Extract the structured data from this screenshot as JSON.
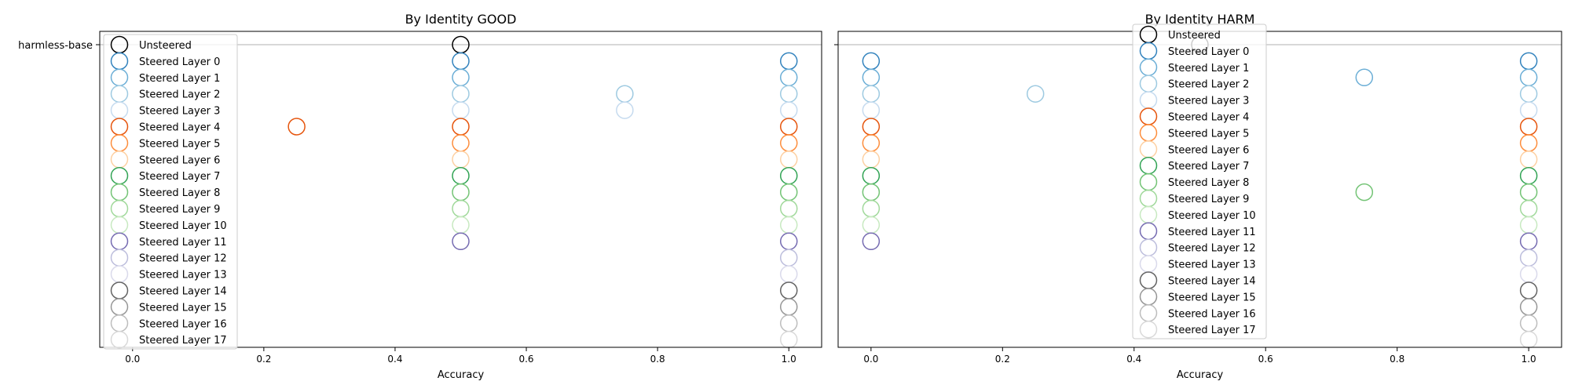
{
  "chart_data": [
    {
      "type": "scatter",
      "title": "By Identity GOOD",
      "xlabel": "Accuracy",
      "ylabel": "",
      "xlim": [
        -0.05,
        1.05
      ],
      "x_ticks": [
        "0.0",
        "0.2",
        "0.4",
        "0.6",
        "0.8",
        "1.0"
      ],
      "y_tick_label": "harmless-base",
      "legend_position": "upper-left",
      "series": [
        {
          "name": "Unsteered",
          "color": "#000000",
          "x": [
            0.5
          ]
        },
        {
          "name": "Steered Layer 0",
          "color": "#3182bd",
          "x": [
            0.5,
            1.0
          ]
        },
        {
          "name": "Steered Layer 1",
          "color": "#6baed6",
          "x": [
            0.5,
            1.0
          ]
        },
        {
          "name": "Steered Layer 2",
          "color": "#9ecae1",
          "x": [
            0.5,
            0.75,
            1.0
          ]
        },
        {
          "name": "Steered Layer 3",
          "color": "#c6dbef",
          "x": [
            0.5,
            0.75,
            1.0
          ]
        },
        {
          "name": "Steered Layer 4",
          "color": "#e6550d",
          "x": [
            0.25,
            0.5,
            1.0
          ]
        },
        {
          "name": "Steered Layer 5",
          "color": "#fd8d3c",
          "x": [
            0.5,
            1.0
          ]
        },
        {
          "name": "Steered Layer 6",
          "color": "#fdd0a2",
          "x": [
            0.5,
            1.0
          ]
        },
        {
          "name": "Steered Layer 7",
          "color": "#31a354",
          "x": [
            0.5,
            1.0
          ]
        },
        {
          "name": "Steered Layer 8",
          "color": "#74c476",
          "x": [
            0.5,
            1.0
          ]
        },
        {
          "name": "Steered Layer 9",
          "color": "#a1d99b",
          "x": [
            0.5,
            1.0
          ]
        },
        {
          "name": "Steered Layer 10",
          "color": "#c7e9c0",
          "x": [
            0.5,
            1.0
          ]
        },
        {
          "name": "Steered Layer 11",
          "color": "#756bb1",
          "x": [
            0.5,
            1.0
          ]
        },
        {
          "name": "Steered Layer 12",
          "color": "#bcbddc",
          "x": [
            1.0
          ]
        },
        {
          "name": "Steered Layer 13",
          "color": "#dadaeb",
          "x": [
            1.0
          ]
        },
        {
          "name": "Steered Layer 14",
          "color": "#636363",
          "x": [
            1.0
          ]
        },
        {
          "name": "Steered Layer 15",
          "color": "#969696",
          "x": [
            1.0
          ]
        },
        {
          "name": "Steered Layer 16",
          "color": "#bdbdbd",
          "x": [
            1.0
          ]
        },
        {
          "name": "Steered Layer 17",
          "color": "#d9d9d9",
          "x": [
            1.0
          ]
        }
      ]
    },
    {
      "type": "scatter",
      "title": "By Identity HARM",
      "xlabel": "Accuracy",
      "ylabel": "",
      "xlim": [
        -0.05,
        1.05
      ],
      "x_ticks": [
        "0.0",
        "0.2",
        "0.4",
        "0.6",
        "0.8",
        "1.0"
      ],
      "legend_position": "upper-center",
      "series": [
        {
          "name": "Unsteered",
          "color": "#000000",
          "x": [
            0.5
          ]
        },
        {
          "name": "Steered Layer 0",
          "color": "#3182bd",
          "x": [
            0.0,
            1.0
          ]
        },
        {
          "name": "Steered Layer 1",
          "color": "#6baed6",
          "x": [
            0.0,
            0.75,
            1.0
          ]
        },
        {
          "name": "Steered Layer 2",
          "color": "#9ecae1",
          "x": [
            0.0,
            0.25,
            1.0
          ]
        },
        {
          "name": "Steered Layer 3",
          "color": "#c6dbef",
          "x": [
            0.0,
            1.0
          ]
        },
        {
          "name": "Steered Layer 4",
          "color": "#e6550d",
          "x": [
            0.0,
            1.0
          ]
        },
        {
          "name": "Steered Layer 5",
          "color": "#fd8d3c",
          "x": [
            0.0,
            1.0
          ]
        },
        {
          "name": "Steered Layer 6",
          "color": "#fdd0a2",
          "x": [
            0.0,
            1.0
          ]
        },
        {
          "name": "Steered Layer 7",
          "color": "#31a354",
          "x": [
            0.0,
            1.0
          ]
        },
        {
          "name": "Steered Layer 8",
          "color": "#74c476",
          "x": [
            0.0,
            0.75,
            1.0
          ]
        },
        {
          "name": "Steered Layer 9",
          "color": "#a1d99b",
          "x": [
            0.0,
            1.0
          ]
        },
        {
          "name": "Steered Layer 10",
          "color": "#c7e9c0",
          "x": [
            0.0,
            1.0
          ]
        },
        {
          "name": "Steered Layer 11",
          "color": "#756bb1",
          "x": [
            0.0,
            1.0
          ]
        },
        {
          "name": "Steered Layer 12",
          "color": "#bcbddc",
          "x": [
            1.0
          ]
        },
        {
          "name": "Steered Layer 13",
          "color": "#dadaeb",
          "x": [
            1.0
          ]
        },
        {
          "name": "Steered Layer 14",
          "color": "#636363",
          "x": [
            1.0
          ]
        },
        {
          "name": "Steered Layer 15",
          "color": "#969696",
          "x": [
            1.0
          ]
        },
        {
          "name": "Steered Layer 16",
          "color": "#bdbdbd",
          "x": [
            1.0
          ]
        },
        {
          "name": "Steered Layer 17",
          "color": "#d9d9d9",
          "x": [
            1.0
          ]
        }
      ]
    }
  ]
}
